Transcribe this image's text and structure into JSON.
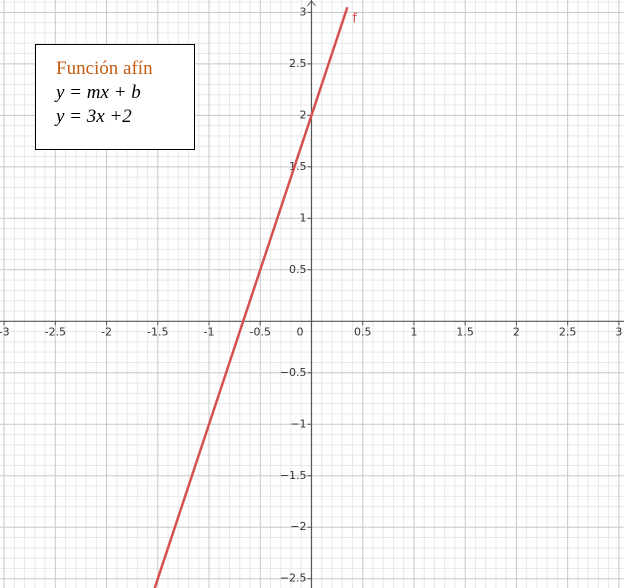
{
  "chart_data": {
    "type": "line",
    "annotations": [
      "Función afín",
      "y = mx + b",
      "y = 3x +2"
    ],
    "x": [
      -1.53,
      0.35
    ],
    "series": [
      {
        "name": "f",
        "color": "#d65050",
        "values": [
          -2.59,
          3.05
        ]
      }
    ],
    "xlim": [
      -3.04,
      3.05
    ],
    "ylim": [
      -2.59,
      3.12
    ],
    "xticks": [
      -3,
      -2.5,
      -2,
      -1.5,
      -1,
      -0.5,
      0,
      0.5,
      1,
      1.5,
      2,
      2.5,
      3
    ],
    "yticks": [
      {
        "value": -2.5,
        "label": "−2.5"
      },
      {
        "value": -2,
        "label": "−2"
      },
      {
        "value": -1.5,
        "label": "−1.5"
      },
      {
        "value": -1,
        "label": "−1"
      },
      {
        "value": -0.5,
        "label": "−0.5"
      },
      0.5,
      1,
      1.5,
      2,
      2.5,
      3
    ],
    "grid": true
  }
}
